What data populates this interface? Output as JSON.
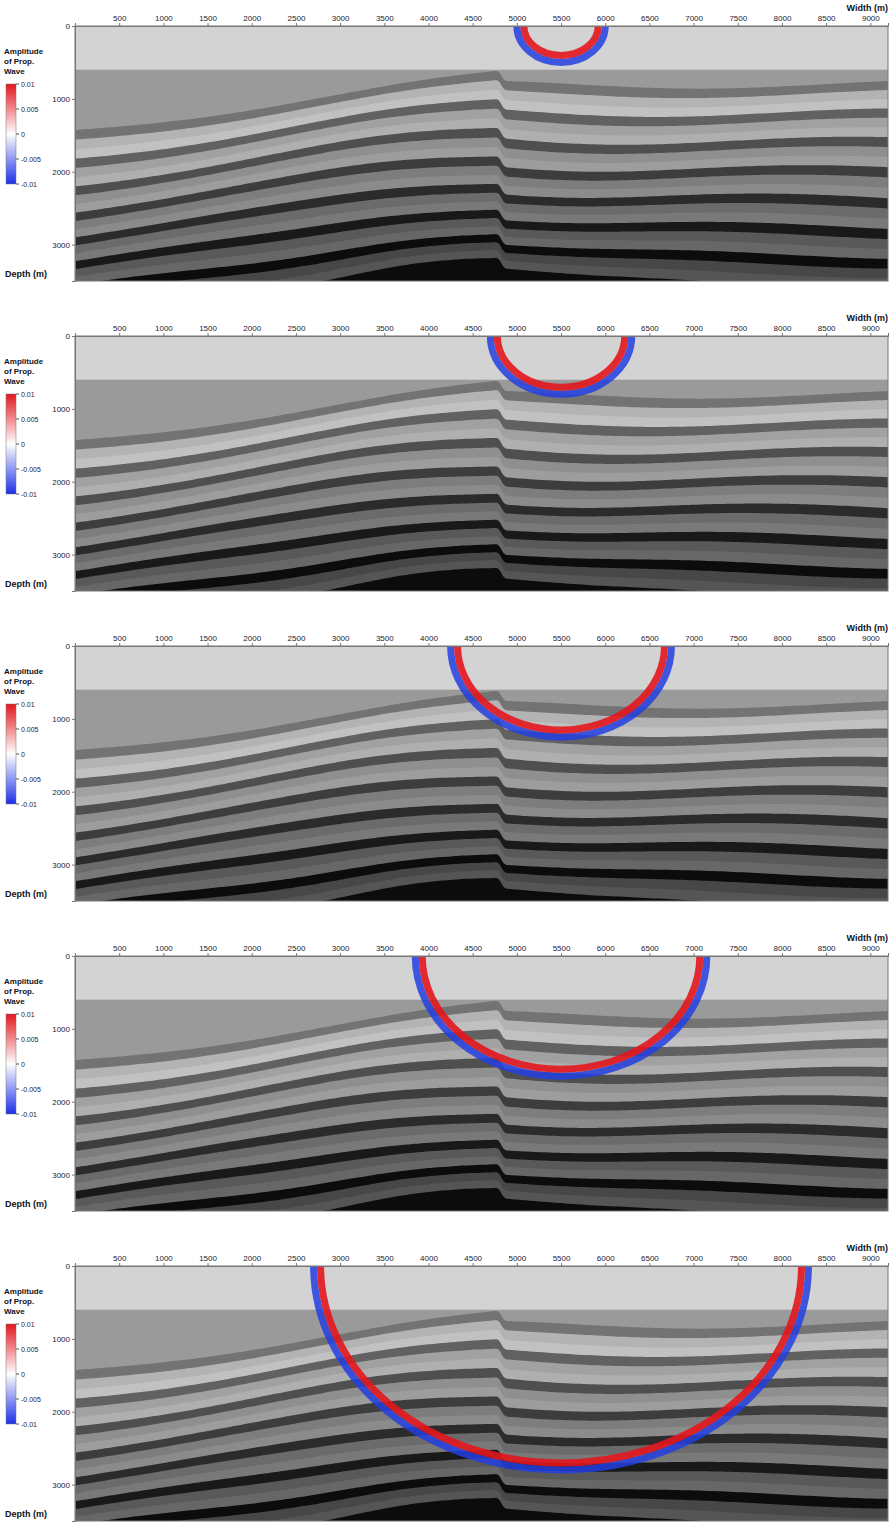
{
  "chart_data": {
    "type": "wavefield_snapshots",
    "x_label": "Width (m)",
    "y_label": "Depth (m)",
    "colorbar_title": "Amplitude of Prop. Wave",
    "xlim": [
      0,
      9200
    ],
    "xticks": [
      500,
      1000,
      1500,
      2000,
      2500,
      3000,
      3500,
      4000,
      4500,
      5000,
      5500,
      6000,
      6500,
      7000,
      7500,
      8000,
      8500,
      9000
    ],
    "ylim": [
      0,
      3500
    ],
    "yticks": [
      0,
      1000,
      2000,
      3000
    ],
    "colorbar_range": [
      -0.01,
      0.01
    ],
    "colorbar_ticks": [
      0.01,
      0.005,
      0,
      -0.005,
      -0.01
    ],
    "source": {
      "x": 5500,
      "depth": 0
    },
    "water_depth": 600,
    "panels": [
      {
        "wavefront_radius": 500
      },
      {
        "wavefront_radius": 800
      },
      {
        "wavefront_radius": 1250
      },
      {
        "wavefront_radius": 1650
      },
      {
        "wavefront_radius": 2800
      }
    ]
  }
}
